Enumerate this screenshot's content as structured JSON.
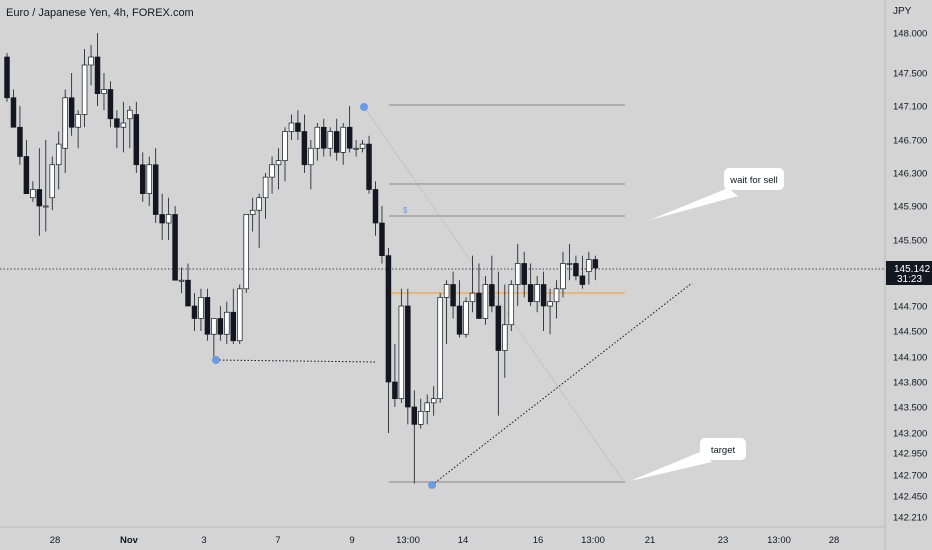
{
  "title": "Euro / Japanese Yen, 4h, FOREX.com",
  "chart_data": {
    "type": "candlestick",
    "title": "Euro / Japanese Yen, 4h, FOREX.com",
    "unit": "JPY",
    "ylim": [
      142.1,
      148.3
    ],
    "y_ticks": [
      "148.000",
      "147.500",
      "147.100",
      "146.700",
      "146.300",
      "145.900",
      "145.500",
      "145.142",
      "144.700",
      "144.500",
      "144.100",
      "143.800",
      "143.500",
      "143.200",
      "142.950",
      "142.700",
      "142.450",
      "142.210"
    ],
    "x_ticks": [
      "28",
      "Nov",
      "3",
      "7",
      "9",
      "13:00",
      "14",
      "16",
      "13:00",
      "21",
      "23",
      "13:00",
      "28"
    ],
    "last_price": "145.142",
    "countdown": "31:23",
    "candles": [
      [
        147.7,
        147.75,
        147.15,
        147.2
      ],
      [
        147.2,
        147.3,
        146.85,
        146.85
      ],
      [
        146.85,
        147.1,
        146.4,
        146.5
      ],
      [
        146.5,
        146.7,
        146.05,
        146.05
      ],
      [
        146.0,
        146.2,
        145.95,
        146.1
      ],
      [
        146.1,
        146.6,
        145.55,
        145.9
      ],
      [
        145.9,
        146.7,
        145.6,
        145.9
      ],
      [
        146.0,
        146.5,
        145.85,
        146.4
      ],
      [
        146.4,
        146.8,
        146.1,
        146.65
      ],
      [
        146.6,
        147.3,
        146.3,
        147.2
      ],
      [
        147.2,
        147.5,
        146.75,
        146.85
      ],
      [
        146.85,
        147.05,
        146.6,
        147.0
      ],
      [
        147.0,
        147.8,
        146.85,
        147.6
      ],
      [
        147.6,
        147.85,
        147.35,
        147.7
      ],
      [
        147.7,
        148.0,
        147.1,
        147.25
      ],
      [
        147.25,
        147.5,
        147.05,
        147.3
      ],
      [
        147.3,
        147.4,
        146.85,
        146.95
      ],
      [
        146.95,
        147.05,
        146.6,
        146.85
      ],
      [
        146.85,
        147.15,
        146.55,
        146.9
      ],
      [
        146.95,
        147.1,
        146.6,
        147.05
      ],
      [
        147.0,
        147.15,
        146.3,
        146.4
      ],
      [
        146.4,
        146.55,
        145.95,
        146.05
      ],
      [
        146.05,
        146.5,
        145.9,
        146.4
      ],
      [
        146.4,
        146.6,
        145.7,
        145.8
      ],
      [
        145.8,
        146.05,
        145.5,
        145.7
      ],
      [
        145.7,
        146.0,
        145.5,
        145.8
      ],
      [
        145.8,
        145.9,
        145.0,
        145.0
      ],
      [
        145.0,
        145.15,
        144.85,
        145.0
      ],
      [
        145.0,
        145.2,
        144.7,
        144.7
      ],
      [
        144.7,
        144.85,
        144.5,
        144.6
      ],
      [
        144.6,
        144.9,
        144.5,
        144.8
      ],
      [
        144.8,
        144.9,
        144.35,
        144.45
      ],
      [
        144.45,
        144.6,
        144.1,
        144.6
      ],
      [
        144.6,
        144.7,
        144.35,
        144.45
      ],
      [
        144.45,
        144.75,
        144.3,
        144.65
      ],
      [
        144.65,
        144.9,
        144.3,
        144.35
      ],
      [
        144.35,
        144.95,
        144.3,
        144.9
      ],
      [
        144.9,
        145.8,
        144.85,
        145.8
      ],
      [
        145.8,
        146.0,
        145.6,
        145.85
      ],
      [
        145.85,
        146.05,
        145.4,
        146.0
      ],
      [
        146.0,
        146.3,
        145.75,
        146.25
      ],
      [
        146.25,
        146.5,
        146.05,
        146.4
      ],
      [
        146.4,
        146.6,
        146.1,
        146.45
      ],
      [
        146.45,
        146.85,
        146.2,
        146.8
      ],
      [
        146.8,
        147.0,
        146.7,
        146.9
      ],
      [
        146.9,
        147.05,
        146.7,
        146.8
      ],
      [
        146.8,
        147.0,
        146.3,
        146.4
      ],
      [
        146.4,
        146.7,
        146.1,
        146.6
      ],
      [
        146.6,
        146.9,
        146.45,
        146.85
      ],
      [
        146.85,
        146.95,
        146.5,
        146.6
      ],
      [
        146.6,
        146.85,
        146.5,
        146.8
      ],
      [
        146.8,
        146.95,
        146.45,
        146.55
      ],
      [
        146.55,
        146.9,
        146.4,
        146.85
      ],
      [
        146.85,
        147.1,
        146.55,
        146.6
      ],
      [
        146.6,
        146.7,
        146.5,
        146.6
      ],
      [
        146.6,
        146.7,
        146.55,
        146.65
      ],
      [
        146.65,
        146.75,
        146.05,
        146.1
      ],
      [
        146.1,
        146.2,
        145.55,
        145.7
      ],
      [
        145.7,
        145.9,
        145.2,
        145.3
      ],
      [
        145.3,
        145.4,
        143.2,
        143.8
      ],
      [
        143.8,
        144.3,
        143.5,
        143.6
      ],
      [
        143.6,
        144.9,
        143.55,
        144.7
      ],
      [
        144.7,
        144.9,
        143.3,
        143.5
      ],
      [
        143.5,
        143.7,
        142.6,
        143.3
      ],
      [
        143.3,
        143.6,
        143.25,
        143.45
      ],
      [
        143.45,
        143.65,
        143.3,
        143.55
      ],
      [
        143.55,
        143.75,
        143.4,
        143.6
      ],
      [
        143.6,
        144.85,
        143.55,
        144.8
      ],
      [
        144.8,
        145.0,
        144.3,
        144.95
      ],
      [
        144.95,
        145.1,
        144.6,
        144.7
      ],
      [
        144.7,
        145.0,
        144.4,
        144.45
      ],
      [
        144.45,
        144.8,
        144.4,
        144.75
      ],
      [
        144.75,
        145.3,
        144.65,
        144.85
      ],
      [
        144.85,
        145.2,
        144.6,
        144.6
      ],
      [
        144.6,
        145.05,
        144.55,
        144.95
      ],
      [
        144.95,
        145.3,
        144.65,
        144.7
      ],
      [
        144.7,
        145.1,
        143.4,
        144.2
      ],
      [
        144.2,
        144.95,
        143.85,
        144.55
      ],
      [
        144.55,
        145.0,
        144.5,
        144.95
      ],
      [
        144.95,
        145.45,
        144.7,
        145.2
      ],
      [
        145.2,
        145.35,
        144.8,
        144.95
      ],
      [
        144.95,
        145.2,
        144.7,
        144.75
      ],
      [
        144.75,
        145.05,
        144.65,
        144.95
      ],
      [
        144.95,
        145.1,
        144.5,
        144.7
      ],
      [
        144.7,
        144.9,
        144.45,
        144.75
      ],
      [
        144.75,
        145.0,
        144.6,
        144.9
      ],
      [
        144.9,
        145.35,
        144.8,
        145.2
      ],
      [
        145.2,
        145.45,
        145.0,
        145.2
      ],
      [
        145.2,
        145.3,
        145.0,
        145.05
      ],
      [
        145.05,
        145.3,
        144.9,
        144.95
      ],
      [
        145.1,
        145.35,
        144.95,
        145.25
      ],
      [
        145.25,
        145.3,
        145.0,
        145.142
      ]
    ],
    "annotations": {
      "wait_label": "wait for sell",
      "target_label": "target",
      "small_mark": "$"
    },
    "colors": {
      "bull": "#ffffff",
      "bear": "#131722",
      "orange_level": "#f59b2c",
      "markers": "#6b9be0",
      "price_tag": "#131722"
    }
  }
}
